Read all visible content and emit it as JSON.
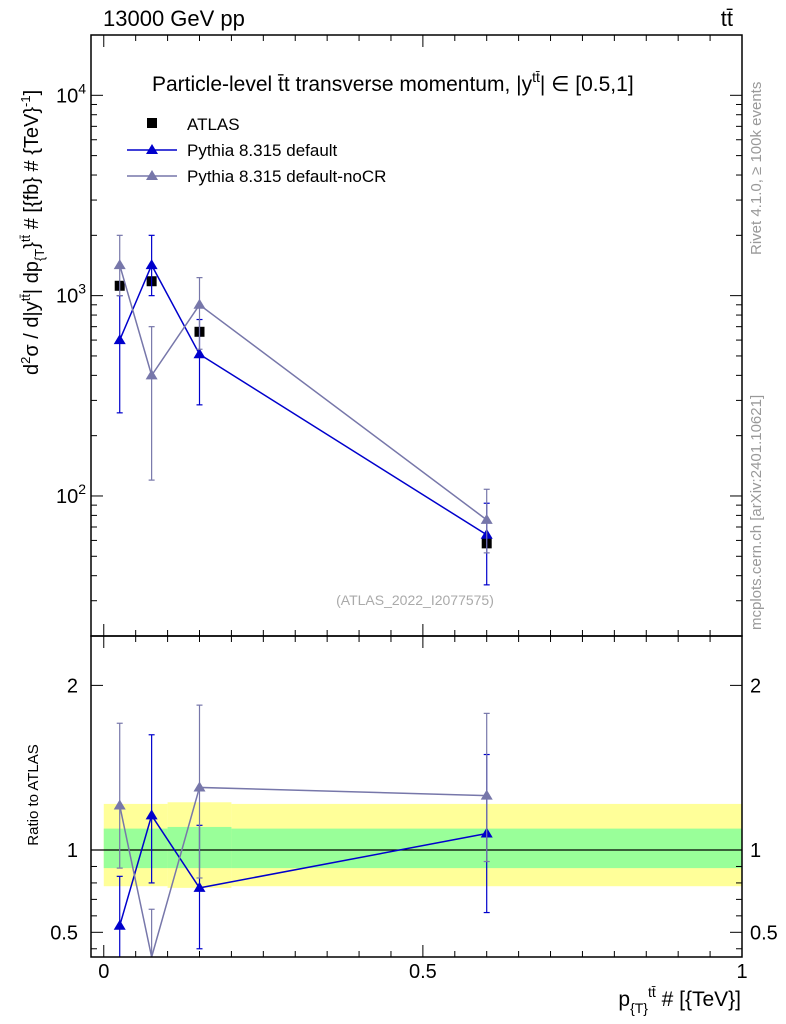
{
  "header": {
    "left": "13000 GeV pp",
    "right": "tt̄"
  },
  "side_labels": {
    "rivet": "Rivet 4.1.0, ≥ 100k events",
    "mcplots": "mcplots.cern.ch [arXiv:2401.10621]"
  },
  "chart_data": [
    {
      "type": "scatter",
      "panel": "main",
      "title": "Particle-level t̄t transverse momentum, |y^{tt̄}| ∈ [0.5,1]",
      "title_parts": {
        "main": "Particle-level t̄t transverse momentum, |y",
        "sup": "tt̄",
        "tail": "| ∈ [0.5,1]"
      },
      "ylabel_parts": {
        "a": "d",
        "b": "2",
        "c": "σ / d|y",
        "d": "tt̄",
        "e": "| dp",
        "f": "{T",
        "g": "}",
        "h": "tt̄",
        "i": " # [{fb} # {TeV}",
        "j": "-1",
        "k": "]"
      },
      "yscale": "log",
      "ylim": [
        20,
        20000
      ],
      "xlim": [
        -0.02,
        1.0
      ],
      "yticks": [
        {
          "label": "10",
          "exp": "2",
          "value": 100
        },
        {
          "label": "10",
          "exp": "3",
          "value": 1000
        },
        {
          "label": "10",
          "exp": "4",
          "value": 10000
        }
      ],
      "reference": "(ATLAS_2022_I2077575)",
      "series": [
        {
          "name": "ATLAS",
          "marker": "square",
          "color": "#000000",
          "x": [
            0.025,
            0.075,
            0.15,
            0.6
          ],
          "y": [
            1120,
            1180,
            660,
            58
          ],
          "yerr_low": [
            0,
            0,
            0,
            0
          ],
          "yerr_high": [
            0,
            0,
            0,
            0
          ]
        },
        {
          "name": "Pythia 8.315 default",
          "marker": "triangle",
          "color": "#0000cc",
          "x": [
            0.025,
            0.075,
            0.15,
            0.6
          ],
          "y": [
            600,
            1420,
            510,
            64
          ],
          "yerr_low": [
            340,
            420,
            225,
            28
          ],
          "yerr_high": [
            400,
            580,
            250,
            28
          ]
        },
        {
          "name": "Pythia 8.315 default-noCR",
          "marker": "triangle",
          "color": "#7777aa",
          "x": [
            0.025,
            0.075,
            0.15,
            0.6
          ],
          "y": [
            1420,
            400,
            900,
            76
          ],
          "yerr_low": [
            420,
            280,
            360,
            24
          ],
          "yerr_high": [
            580,
            300,
            330,
            32
          ]
        }
      ]
    },
    {
      "type": "scatter",
      "panel": "ratio",
      "ylabel": "Ratio to ATLAS",
      "xlabel": "p_{T}^{tt̄} # [{TeV}]",
      "xlabel_parts": {
        "a": "p",
        "b": "{T}",
        "c": "tt̄",
        "d": " # [{TeV}]"
      },
      "ylim": [
        0.35,
        2.3
      ],
      "xlim": [
        -0.02,
        1.0
      ],
      "yticks": [
        {
          "label": "0.5",
          "value": 0.5
        },
        {
          "label": "1",
          "value": 1
        },
        {
          "label": "2",
          "value": 2
        }
      ],
      "xticks": [
        {
          "label": "0",
          "value": 0
        },
        {
          "label": "0.5",
          "value": 0.5
        },
        {
          "label": "1",
          "value": 1
        }
      ],
      "bands": [
        {
          "x0": 0.0,
          "x1": 0.1,
          "inner": [
            0.89,
            1.13
          ],
          "outer": [
            0.78,
            1.28
          ],
          "inner_color": "#99ff99",
          "outer_color": "#ffff99"
        },
        {
          "x0": 0.1,
          "x1": 0.2,
          "inner": [
            0.89,
            1.14
          ],
          "outer": [
            0.77,
            1.29
          ],
          "inner_color": "#99ff99",
          "outer_color": "#ffff99"
        },
        {
          "x0": 0.2,
          "x1": 1.0,
          "inner": [
            0.89,
            1.13
          ],
          "outer": [
            0.78,
            1.28
          ],
          "inner_color": "#99ff99",
          "outer_color": "#ffff99"
        }
      ],
      "series": [
        {
          "name": "Pythia 8.315 default",
          "color": "#0000cc",
          "x": [
            0.025,
            0.075,
            0.15,
            0.6
          ],
          "y": [
            0.54,
            1.21,
            0.77,
            1.1
          ],
          "yerr_low": [
            0.3,
            0.41,
            0.37,
            0.48
          ],
          "yerr_high": [
            0.3,
            0.49,
            0.38,
            0.48
          ]
        },
        {
          "name": "Pythia 8.315 default-noCR",
          "color": "#7777aa",
          "x": [
            0.025,
            0.075,
            0.15,
            0.6
          ],
          "y": [
            1.27,
            0.34,
            1.38,
            1.33
          ],
          "yerr_low": [
            0.38,
            0.3,
            0.55,
            0.4
          ],
          "yerr_high": [
            0.5,
            0.3,
            0.5,
            0.5
          ]
        }
      ]
    }
  ]
}
